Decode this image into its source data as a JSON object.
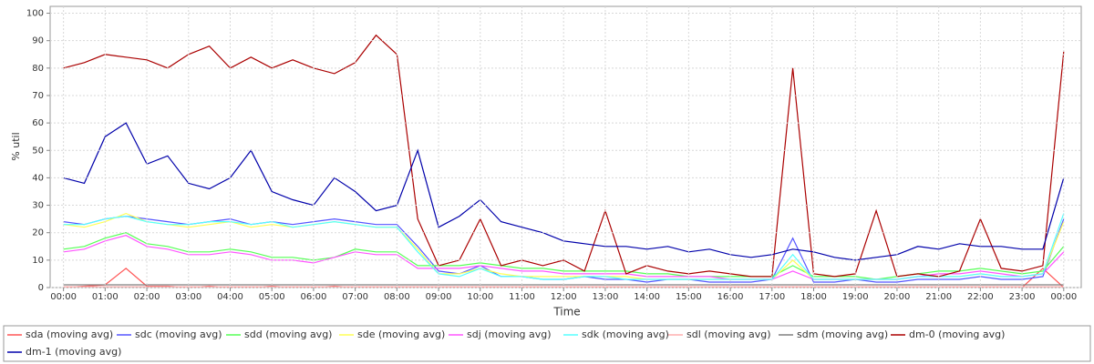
{
  "chart_data": {
    "type": "line",
    "x_label": "Time",
    "y_label": "% util",
    "x": [
      0,
      0.5,
      1,
      1.5,
      2,
      2.5,
      3,
      3.5,
      4,
      4.5,
      5,
      5.5,
      6,
      6.5,
      7,
      7.5,
      8,
      8.5,
      9,
      9.5,
      10,
      10.5,
      11,
      11.5,
      12,
      12.5,
      13,
      13.5,
      14,
      14.5,
      15,
      15.5,
      16,
      16.5,
      17,
      17.5,
      18,
      18.5,
      19,
      19.5,
      20,
      20.5,
      21,
      21.5,
      22,
      22.5,
      23,
      23.5,
      24
    ],
    "xlim": [
      -0.32,
      24.42
    ],
    "xticks": [
      {
        "value": 0,
        "label": "00:00"
      },
      {
        "value": 1,
        "label": "01:00"
      },
      {
        "value": 2,
        "label": "02:00"
      },
      {
        "value": 3,
        "label": "03:00"
      },
      {
        "value": 4,
        "label": "04:00"
      },
      {
        "value": 5,
        "label": "05:00"
      },
      {
        "value": 6,
        "label": "06:00"
      },
      {
        "value": 7,
        "label": "07:00"
      },
      {
        "value": 8,
        "label": "08:00"
      },
      {
        "value": 9,
        "label": "09:00"
      },
      {
        "value": 10,
        "label": "10:00"
      },
      {
        "value": 11,
        "label": "11:00"
      },
      {
        "value": 12,
        "label": "12:00"
      },
      {
        "value": 13,
        "label": "13:00"
      },
      {
        "value": 14,
        "label": "14:00"
      },
      {
        "value": 15,
        "label": "15:00"
      },
      {
        "value": 16,
        "label": "16:00"
      },
      {
        "value": 17,
        "label": "17:00"
      },
      {
        "value": 18,
        "label": "18:00"
      },
      {
        "value": 19,
        "label": "19:00"
      },
      {
        "value": 20,
        "label": "20:00"
      },
      {
        "value": 21,
        "label": "21:00"
      },
      {
        "value": 22,
        "label": "22:00"
      },
      {
        "value": 23,
        "label": "23:00"
      },
      {
        "value": 24,
        "label": "00:00"
      }
    ],
    "ylim": [
      0,
      102.5
    ],
    "yticks": [
      0,
      10,
      20,
      30,
      40,
      50,
      60,
      70,
      80,
      90,
      100
    ],
    "grid": true,
    "series": [
      {
        "name": "sda (moving avg)",
        "color": "#ff5555",
        "values": [
          0,
          0.5,
          1,
          7,
          0.5,
          0.5,
          0,
          0.5,
          0,
          0,
          0.5,
          0,
          0,
          0.5,
          0,
          0,
          0,
          0,
          0,
          0,
          0,
          0,
          0,
          0,
          0,
          0,
          0,
          0,
          0,
          0,
          0,
          0,
          0,
          0,
          0,
          0,
          0,
          0,
          0,
          0,
          0,
          0,
          0,
          0,
          0,
          0,
          0,
          7,
          0
        ]
      },
      {
        "name": "sdc (moving avg)",
        "color": "#5555ff",
        "values": [
          24,
          23,
          25,
          26,
          25,
          24,
          23,
          24,
          25,
          23,
          24,
          23,
          24,
          25,
          24,
          23,
          23,
          15,
          6,
          5,
          8,
          4,
          4,
          3,
          3,
          4,
          3,
          3,
          2,
          3,
          3,
          2,
          2,
          2,
          3,
          18,
          2,
          2,
          3,
          2,
          2,
          3,
          3,
          3,
          4,
          3,
          3,
          4,
          25
        ]
      },
      {
        "name": "sdd (moving avg)",
        "color": "#55ff55",
        "values": [
          14,
          15,
          18,
          20,
          16,
          15,
          13,
          13,
          14,
          13,
          11,
          11,
          10,
          11,
          14,
          13,
          13,
          8,
          8,
          8,
          9,
          8,
          7,
          7,
          6,
          6,
          6,
          6,
          5,
          5,
          4,
          4,
          4,
          4,
          4,
          8,
          4,
          4,
          4,
          3,
          4,
          5,
          6,
          6,
          7,
          6,
          5,
          6,
          15
        ]
      },
      {
        "name": "sde (moving avg)",
        "color": "#ffff55",
        "values": [
          23,
          22,
          24,
          27,
          24,
          23,
          22,
          23,
          24,
          22,
          23,
          22,
          23,
          24,
          23,
          22,
          22,
          14,
          5,
          5,
          7,
          5,
          4,
          4,
          4,
          4,
          4,
          4,
          3,
          3,
          3,
          3,
          3,
          3,
          3,
          10,
          3,
          3,
          3,
          3,
          3,
          4,
          4,
          4,
          5,
          4,
          4,
          5,
          24
        ]
      },
      {
        "name": "sdj (moving avg)",
        "color": "#ff55ff",
        "values": [
          13,
          14,
          17,
          19,
          15,
          14,
          12,
          12,
          13,
          12,
          10,
          10,
          9,
          11,
          13,
          12,
          12,
          7,
          7,
          7,
          8,
          7,
          6,
          6,
          5,
          5,
          5,
          5,
          4,
          4,
          4,
          4,
          3,
          3,
          3,
          6,
          3,
          3,
          3,
          3,
          3,
          4,
          5,
          5,
          6,
          5,
          4,
          5,
          13
        ]
      },
      {
        "name": "sdk (moving avg)",
        "color": "#55ffff",
        "values": [
          23,
          23,
          25,
          26,
          24,
          23,
          23,
          24,
          24,
          23,
          24,
          22,
          23,
          24,
          23,
          22,
          22,
          13,
          5,
          4,
          7,
          4,
          4,
          3,
          3,
          4,
          4,
          3,
          3,
          3,
          3,
          3,
          3,
          3,
          3,
          12,
          3,
          3,
          3,
          3,
          3,
          4,
          4,
          4,
          5,
          4,
          4,
          5,
          27
        ]
      },
      {
        "name": "sdl (moving avg)",
        "color": "#ffafaf",
        "values": [
          0.3,
          0.3,
          0.3,
          0.3,
          0.3,
          0.3,
          0.3,
          0.3,
          0.3,
          0.3,
          0.3,
          0.3,
          0.3,
          0.3,
          0.3,
          0.3,
          0.3,
          0.3,
          0.3,
          0.3,
          0.3,
          0.3,
          0.3,
          0.3,
          0.3,
          0.3,
          0.3,
          0.3,
          0.3,
          0.3,
          0.3,
          0.3,
          0.3,
          0.3,
          0.3,
          0.3,
          0.3,
          0.3,
          0.3,
          0.3,
          0.3,
          0.3,
          0.3,
          0.3,
          0.3,
          0.3,
          0.3,
          0.3,
          0.3
        ]
      },
      {
        "name": "sdm (moving avg)",
        "color": "#808080",
        "values": [
          1,
          1,
          1,
          1,
          1,
          1,
          1,
          1,
          1,
          1,
          1,
          1,
          1,
          1,
          1,
          1,
          1,
          1,
          1,
          1,
          1,
          1,
          1,
          1,
          1,
          1,
          1,
          1,
          1,
          1,
          1,
          1,
          1,
          1,
          1,
          1,
          1,
          1,
          1,
          1,
          1,
          1,
          1,
          1,
          1,
          1,
          1,
          1,
          1
        ]
      },
      {
        "name": "dm-0 (moving avg)",
        "color": "#aa0000",
        "values": [
          80,
          82,
          85,
          84,
          83,
          80,
          85,
          88,
          80,
          84,
          80,
          83,
          80,
          78,
          82,
          92,
          85,
          25,
          8,
          10,
          25,
          8,
          10,
          8,
          10,
          6,
          28,
          5,
          8,
          6,
          5,
          6,
          5,
          4,
          4,
          80,
          5,
          4,
          5,
          28,
          4,
          5,
          4,
          6,
          25,
          7,
          6,
          8,
          86
        ]
      },
      {
        "name": "dm-1 (moving avg)",
        "color": "#0000aa",
        "values": [
          40,
          38,
          55,
          60,
          45,
          48,
          38,
          36,
          40,
          50,
          35,
          32,
          30,
          40,
          35,
          28,
          30,
          50,
          22,
          26,
          32,
          24,
          22,
          20,
          17,
          16,
          15,
          15,
          14,
          15,
          13,
          14,
          12,
          11,
          12,
          14,
          13,
          11,
          10,
          11,
          12,
          15,
          14,
          16,
          15,
          15,
          14,
          14,
          40
        ]
      }
    ]
  }
}
